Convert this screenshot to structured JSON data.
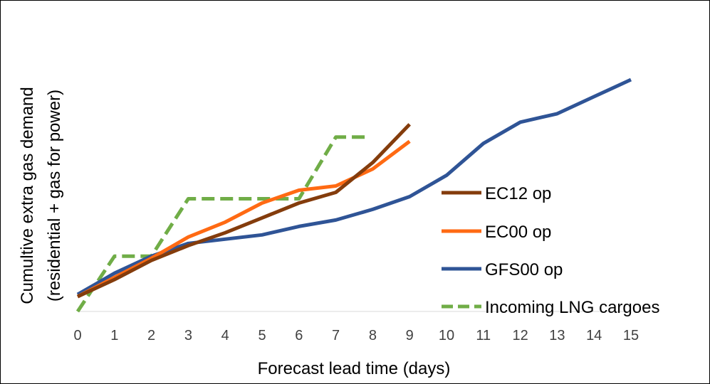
{
  "chart_data": {
    "type": "line",
    "title": "",
    "xlabel": "Forecast lead time (days)",
    "ylabel": "Cumultive extra gas demand",
    "ylabel_line2": "(residential + gas for power)",
    "xlim": [
      0,
      15
    ],
    "ylim": [
      0,
      100
    ],
    "x_ticks": [
      "0",
      "1",
      "2",
      "3",
      "4",
      "5",
      "6",
      "7",
      "8",
      "9",
      "10",
      "11",
      "12",
      "13",
      "14",
      "15"
    ],
    "grid": false,
    "legend_position": "right",
    "series": [
      {
        "name": "EC12 op",
        "color": "#843C0C",
        "dash": "solid",
        "x": [
          0,
          1,
          2,
          3,
          4,
          5,
          6,
          7,
          8,
          9
        ],
        "values": [
          7,
          15,
          24,
          31,
          37,
          44,
          51,
          56,
          70,
          88
        ]
      },
      {
        "name": "EC00 op",
        "color": "#FF6A13",
        "dash": "solid",
        "x": [
          0,
          1,
          2,
          3,
          4,
          5,
          6,
          7,
          8,
          9
        ],
        "values": [
          7,
          16,
          25,
          35,
          42,
          51,
          57,
          59,
          67,
          80
        ]
      },
      {
        "name": "GFS00 op",
        "color": "#2F5496",
        "dash": "solid",
        "x": [
          0,
          1,
          2,
          3,
          4,
          5,
          6,
          7,
          8,
          9,
          10,
          11,
          12,
          13,
          14,
          15
        ],
        "values": [
          8,
          18,
          26,
          32,
          34,
          36,
          40,
          43,
          48,
          54,
          64,
          79,
          89,
          93,
          101,
          109
        ]
      },
      {
        "name": "Incoming LNG cargoes",
        "color": "#70AD47",
        "dash": "dashed",
        "x": [
          0,
          1,
          2,
          3,
          4,
          5,
          6,
          7,
          7.8
        ],
        "values": [
          0,
          26,
          26,
          53,
          53,
          53,
          53,
          82,
          82
        ]
      }
    ]
  }
}
